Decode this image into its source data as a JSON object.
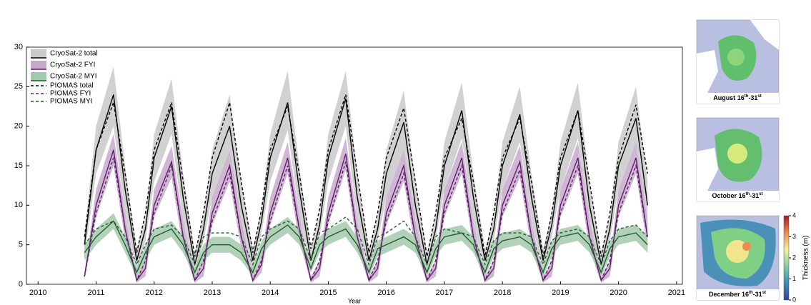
{
  "chart_data": {
    "type": "line",
    "xlabel": "Year",
    "xlim": [
      2009.8,
      2021.1
    ],
    "xticks": [
      2010,
      2011,
      2012,
      2013,
      2014,
      2015,
      2016,
      2017,
      2018,
      2019,
      2020,
      2021
    ],
    "ylim": [
      0,
      30
    ],
    "yticks": [
      0,
      5,
      10,
      15,
      20,
      25,
      30
    ],
    "legend": "upper left",
    "x": [
      2010.8,
      2011.0,
      2011.3,
      2011.5,
      2011.7,
      2011.85,
      2012.0,
      2012.3,
      2012.5,
      2012.7,
      2012.85,
      2013.0,
      2013.3,
      2013.5,
      2013.7,
      2013.85,
      2014.0,
      2014.3,
      2014.5,
      2014.7,
      2014.85,
      2015.0,
      2015.3,
      2015.5,
      2015.7,
      2015.85,
      2016.0,
      2016.3,
      2016.5,
      2016.7,
      2016.85,
      2017.0,
      2017.3,
      2017.5,
      2017.7,
      2017.85,
      2018.0,
      2018.3,
      2018.5,
      2018.7,
      2018.85,
      2019.0,
      2019.3,
      2019.5,
      2019.7,
      2019.85,
      2020.0,
      2020.3,
      2020.5
    ],
    "series": [
      {
        "name": "CryoSat-2 total",
        "color": "#000000",
        "band_color": "#c9c9c9",
        "dashed": false,
        "values": [
          5,
          17,
          24,
          12,
          3,
          7,
          16,
          22.5,
          11,
          2.5,
          7,
          14,
          20,
          10,
          3,
          8,
          16,
          23,
          12,
          3,
          7.5,
          16,
          23.5,
          11,
          3,
          7,
          14,
          20.5,
          10,
          2.5,
          7,
          15,
          22,
          11,
          3,
          7,
          15,
          21.5,
          11,
          3,
          7.5,
          15,
          22,
          10,
          2.5,
          7,
          15,
          21,
          10
        ],
        "lower": [
          3.5,
          14,
          20,
          9,
          1.5,
          5.5,
          13,
          19,
          8,
          1,
          5.5,
          11,
          17,
          7,
          1.5,
          6.5,
          13,
          19.5,
          9,
          1.5,
          6,
          13,
          20,
          8,
          1.5,
          5.5,
          11,
          17,
          7,
          1,
          5.5,
          12,
          18.5,
          8,
          1.5,
          5.5,
          12,
          18,
          8,
          1.5,
          6,
          12,
          18.5,
          7,
          1,
          5.5,
          12,
          18,
          7
        ],
        "upper": [
          6.5,
          20,
          27.5,
          15,
          4.5,
          8.5,
          19,
          26,
          14,
          4,
          8.5,
          17,
          24,
          13,
          4.5,
          9.5,
          19,
          27,
          15,
          4.5,
          9,
          19,
          27,
          14,
          4.5,
          8.5,
          17,
          24.5,
          13,
          4,
          8.5,
          18,
          25.5,
          14,
          4.5,
          8.5,
          18,
          25,
          14,
          4.5,
          9,
          18,
          25.5,
          13,
          4,
          8.5,
          18,
          25,
          13
        ]
      },
      {
        "name": "CryoSat-2 FYI",
        "color": "#5e1f66",
        "band_color": "#c7a9cd",
        "dashed": false,
        "values": [
          1,
          10,
          17,
          7,
          0.5,
          2,
          10,
          15.5,
          6,
          0.5,
          2,
          9,
          15,
          6,
          0.5,
          2.5,
          9,
          16,
          7,
          0.5,
          2,
          9,
          16.5,
          6,
          0.5,
          2,
          9,
          15,
          6,
          0.5,
          2,
          10,
          16,
          6,
          0.5,
          2,
          10,
          15.5,
          6,
          0.5,
          2,
          10,
          16,
          6,
          0.5,
          2,
          10,
          16,
          6
        ],
        "lower": [
          0.5,
          8.5,
          15,
          5.5,
          0.2,
          1,
          8.5,
          13.5,
          4.5,
          0.2,
          1,
          7.5,
          13,
          4.5,
          0.2,
          1.5,
          7.5,
          14,
          5.5,
          0.2,
          1,
          7.5,
          14.5,
          4.5,
          0.2,
          1,
          7.5,
          13,
          4.5,
          0.2,
          1,
          8.5,
          14,
          4.5,
          0.2,
          1,
          8.5,
          13.5,
          4.5,
          0.2,
          1,
          8.5,
          14,
          4.5,
          0.2,
          1,
          8.5,
          14,
          4.5
        ],
        "upper": [
          1.5,
          12,
          19,
          9,
          1,
          3,
          12,
          17.5,
          8,
          1,
          3,
          11,
          17,
          8,
          1,
          3.5,
          11,
          18,
          9,
          1,
          3,
          11,
          18.5,
          8,
          1,
          3,
          11,
          17,
          8,
          1,
          3,
          12,
          18,
          8,
          1,
          3,
          12,
          17.5,
          8,
          1,
          3,
          12,
          18,
          8,
          1,
          3,
          12,
          18,
          8
        ]
      },
      {
        "name": "CryoSat-2 MYI",
        "color": "#1f5e2e",
        "band_color": "#a3c9ac",
        "dashed": false,
        "values": [
          4,
          6,
          8,
          5,
          1.5,
          4,
          6,
          7,
          5,
          1.5,
          4,
          5,
          5,
          4,
          1.5,
          4.5,
          6,
          7.5,
          6,
          2,
          5,
          6,
          7,
          5,
          1.5,
          4.5,
          5,
          6,
          5,
          1.5,
          4.5,
          6,
          6.5,
          5,
          1.5,
          4.5,
          5.5,
          6,
          5,
          1.5,
          4.5,
          6,
          6.5,
          5,
          1.5,
          4.5,
          6,
          6.5,
          5
        ],
        "lower": [
          3,
          5,
          7,
          4,
          1,
          3,
          5,
          6,
          4,
          1,
          3,
          4,
          4,
          3,
          1,
          3.5,
          5,
          6.5,
          5,
          1.5,
          4,
          5,
          6,
          4,
          1,
          3.5,
          4,
          5,
          4,
          1,
          3.5,
          5,
          5.5,
          4,
          1,
          3.5,
          4.5,
          5,
          4,
          1,
          3.5,
          5,
          5.5,
          4,
          1,
          3.5,
          5,
          5.5,
          4
        ],
        "upper": [
          5,
          7,
          9,
          6,
          2,
          5,
          7,
          8,
          6,
          2,
          5,
          6,
          6,
          5,
          2,
          5.5,
          7,
          8.5,
          7,
          2.5,
          6,
          7,
          8,
          6,
          2,
          5.5,
          6,
          7,
          6,
          2,
          5.5,
          7,
          7.5,
          6,
          2,
          5.5,
          6.5,
          7,
          6,
          2,
          5.5,
          7,
          7.5,
          6,
          2,
          5.5,
          7,
          7.5,
          6
        ]
      },
      {
        "name": "PIOMAS total",
        "color": "#000000",
        "dashed": true,
        "values": [
          6,
          17,
          23,
          14,
          4,
          9,
          17,
          23,
          13,
          3.5,
          9,
          16,
          23,
          13,
          4,
          9.5,
          17,
          22.5,
          14,
          4.5,
          9.5,
          17,
          24,
          14,
          4,
          9,
          16,
          22.3,
          13,
          3.5,
          9,
          16,
          21,
          13,
          3.5,
          9,
          16,
          21,
          13,
          3.5,
          9,
          16,
          22,
          13,
          3.5,
          9,
          16,
          22.7,
          14
        ]
      },
      {
        "name": "PIOMAS FYI",
        "color": "#5e1f66",
        "dashed": true,
        "values": [
          1,
          9,
          16,
          7,
          0.5,
          3,
          9,
          15,
          6,
          0.5,
          3,
          8,
          14,
          6,
          0.5,
          3,
          8,
          15,
          7,
          0.5,
          3,
          8,
          15.5,
          6,
          0.5,
          3,
          8,
          14,
          6,
          0.5,
          3,
          9,
          15,
          6,
          0.5,
          3,
          9,
          14.5,
          6,
          0.5,
          3,
          9,
          15,
          6,
          0.5,
          3,
          9,
          15,
          6
        ]
      },
      {
        "name": "PIOMAS MYI",
        "color": "#1f5e2e",
        "dashed": true,
        "values": [
          5,
          7,
          8,
          6,
          2.5,
          5,
          7,
          7.5,
          6,
          2.5,
          6,
          6.5,
          6.5,
          6,
          2.5,
          6,
          7,
          8,
          7,
          3,
          6.5,
          7,
          8.5,
          7,
          2.5,
          6,
          6.5,
          8,
          6,
          2.5,
          6,
          7,
          6.5,
          6,
          2.5,
          5.5,
          6.5,
          6.5,
          6,
          2.5,
          5.5,
          6.5,
          7,
          6,
          2.5,
          5.5,
          7,
          7.5,
          6
        ]
      }
    ]
  },
  "maps": [
    {
      "caption": [
        "August 16",
        "th",
        "-31",
        "st"
      ]
    },
    {
      "caption": [
        "October 16",
        "th",
        "-31",
        "st"
      ]
    },
    {
      "caption": [
        "December 16",
        "th",
        "-31",
        "st"
      ]
    }
  ],
  "colorbar": {
    "label": "Thickness (m)",
    "ticks": [
      0,
      1,
      2,
      3,
      4
    ]
  }
}
